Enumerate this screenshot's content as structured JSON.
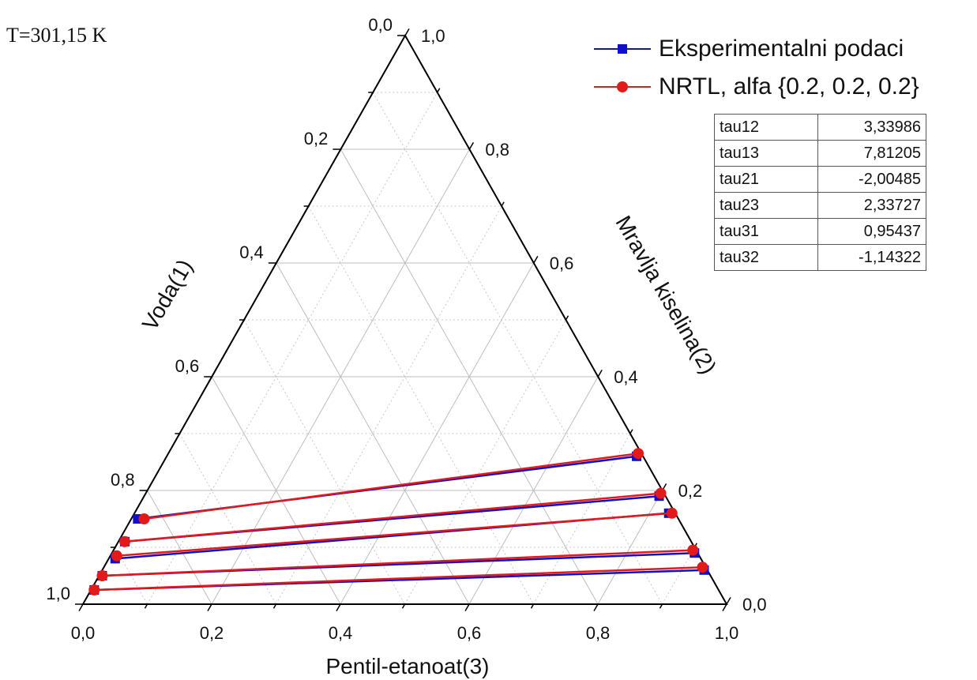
{
  "temperature_label": "T=301,15 K",
  "chart_data": {
    "type": "scatter",
    "subtype": "ternary",
    "axes": {
      "bottom": {
        "label": "Pentil-etanoat(3)",
        "ticks": [
          "0,0",
          "0,2",
          "0,4",
          "0,6",
          "0,8",
          "1,0"
        ]
      },
      "left": {
        "label": "Voda(1)",
        "ticks": [
          "0,0",
          "0,2",
          "0,4",
          "0,6",
          "0,8",
          "1,0"
        ]
      },
      "right": {
        "label": "Mravlja kiselina(2)",
        "ticks": [
          "0,0",
          "0,2",
          "0,4",
          "0,6",
          "0,8",
          "1,0"
        ]
      }
    },
    "grid": true,
    "legend_position": "top-right",
    "series": [
      {
        "name": "Eksperimentalni podaci",
        "color": "#1010c8",
        "marker": "square",
        "tie_lines": [
          {
            "a": {
              "x1": 0.84,
              "x2": 0.15,
              "x3": 0.01
            },
            "b": {
              "x1": 0.01,
              "x2": 0.26,
              "x3": 0.73
            }
          },
          {
            "a": {
              "x1": 0.88,
              "x2": 0.11,
              "x3": 0.01
            },
            "b": {
              "x1": 0.01,
              "x2": 0.19,
              "x3": 0.8
            }
          },
          {
            "a": {
              "x1": 0.91,
              "x2": 0.08,
              "x3": 0.01
            },
            "b": {
              "x1": 0.01,
              "x2": 0.16,
              "x3": 0.83
            }
          },
          {
            "a": {
              "x1": 0.945,
              "x2": 0.05,
              "x3": 0.005
            },
            "b": {
              "x1": 0.005,
              "x2": 0.09,
              "x3": 0.905
            }
          },
          {
            "a": {
              "x1": 0.97,
              "x2": 0.025,
              "x3": 0.005
            },
            "b": {
              "x1": 0.005,
              "x2": 0.06,
              "x3": 0.935
            }
          }
        ]
      },
      {
        "name": "NRTL, alfa {0.2, 0.2, 0.2}",
        "color": "#e41a1a",
        "marker": "circle",
        "tie_lines": [
          {
            "a": {
              "x1": 0.83,
              "x2": 0.15,
              "x3": 0.02
            },
            "b": {
              "x1": 0.005,
              "x2": 0.265,
              "x3": 0.73
            }
          },
          {
            "a": {
              "x1": 0.88,
              "x2": 0.11,
              "x3": 0.01
            },
            "b": {
              "x1": 0.005,
              "x2": 0.195,
              "x3": 0.8
            }
          },
          {
            "a": {
              "x1": 0.905,
              "x2": 0.085,
              "x3": 0.01
            },
            "b": {
              "x1": 0.005,
              "x2": 0.16,
              "x3": 0.835
            }
          },
          {
            "a": {
              "x1": 0.945,
              "x2": 0.05,
              "x3": 0.005
            },
            "b": {
              "x1": 0.005,
              "x2": 0.095,
              "x3": 0.9
            }
          },
          {
            "a": {
              "x1": 0.97,
              "x2": 0.025,
              "x3": 0.005
            },
            "b": {
              "x1": 0.005,
              "x2": 0.065,
              "x3": 0.93
            }
          }
        ]
      }
    ]
  },
  "parameters_table": [
    {
      "name": "tau12",
      "value": "3,33986"
    },
    {
      "name": "tau13",
      "value": "7,81205"
    },
    {
      "name": "tau21",
      "value": "-2,00485"
    },
    {
      "name": "tau23",
      "value": "2,33727"
    },
    {
      "name": "tau31",
      "value": "0,95437"
    },
    {
      "name": "tau32",
      "value": "-1,14322"
    }
  ]
}
